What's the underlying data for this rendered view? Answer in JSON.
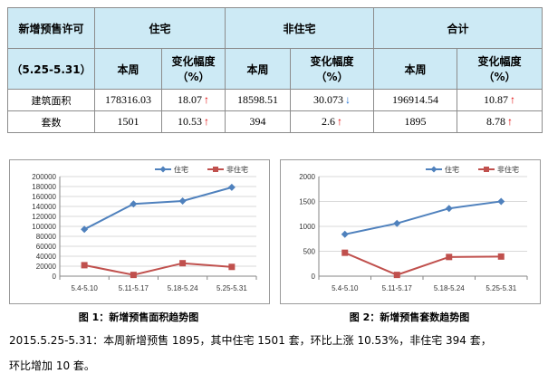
{
  "table": {
    "corner_top": "新增预售许可",
    "corner_bottom": "（5.25-5.31）",
    "groups": [
      "住宅",
      "非住宅",
      "合计"
    ],
    "col_week": "本周",
    "col_change": "变化幅度",
    "col_change_unit": "（%）",
    "rows": [
      {
        "label": "建筑面积",
        "cells": [
          {
            "week": "178316.03",
            "change": "18.07",
            "dir": "up"
          },
          {
            "week": "18598.51",
            "change": "30.073",
            "dir": "down"
          },
          {
            "week": "196914.54",
            "change": "10.87",
            "dir": "up"
          }
        ]
      },
      {
        "label": "套数",
        "cells": [
          {
            "week": "1501",
            "change": "10.53",
            "dir": "up"
          },
          {
            "week": "394",
            "change": "2.6",
            "dir": "up"
          },
          {
            "week": "1895",
            "change": "8.78",
            "dir": "up"
          }
        ]
      }
    ],
    "up_glyph": "↑",
    "down_glyph": "↓"
  },
  "colors": {
    "header_bg": "#cdeaf5",
    "series_res": "#4f81bd",
    "series_non": "#c0504d",
    "up": "#e00000",
    "down": "#1e6fd0"
  },
  "chart_data": [
    {
      "type": "line",
      "title": "图 1：新增预售面积趋势图",
      "categories": [
        "5.4-5.10",
        "5.11-5.17",
        "5.18-5.24",
        "5.25-5.31"
      ],
      "series": [
        {
          "name": "住宅",
          "values": [
            94000,
            145000,
            151000,
            178316
          ]
        },
        {
          "name": "非住宅",
          "values": [
            22000,
            2500,
            26000,
            18598
          ]
        }
      ],
      "ylim": [
        0,
        200000
      ],
      "yticks": [
        "0",
        "20000",
        "40000",
        "60000",
        "80000",
        "100000",
        "120000",
        "140000",
        "160000",
        "180000",
        "200000"
      ],
      "ytick_values": [
        0,
        20000,
        40000,
        60000,
        80000,
        100000,
        120000,
        140000,
        160000,
        180000,
        200000
      ],
      "legend": "top-right",
      "grid": true
    },
    {
      "type": "line",
      "title": "图 2：新增预售套数趋势图",
      "categories": [
        "5.4-5.10",
        "5.11-5.17",
        "5.18-5.24",
        "5.25-5.31"
      ],
      "series": [
        {
          "name": "住宅",
          "values": [
            840,
            1060,
            1360,
            1501
          ]
        },
        {
          "name": "非住宅",
          "values": [
            470,
            25,
            385,
            394
          ]
        }
      ],
      "ylim": [
        0,
        2000
      ],
      "yticks": [
        "0",
        "500",
        "1000",
        "1500",
        "2000"
      ],
      "ytick_values": [
        0,
        500,
        1000,
        1500,
        2000
      ],
      "legend": "top-right",
      "grid": true
    }
  ],
  "summary_line1": "2015.5.25-5.31：本周新增预售 1895，其中住宅 1501 套，环比上涨 10.53%，非住宅 394 套，",
  "summary_line2": "环比增加 10 套。"
}
